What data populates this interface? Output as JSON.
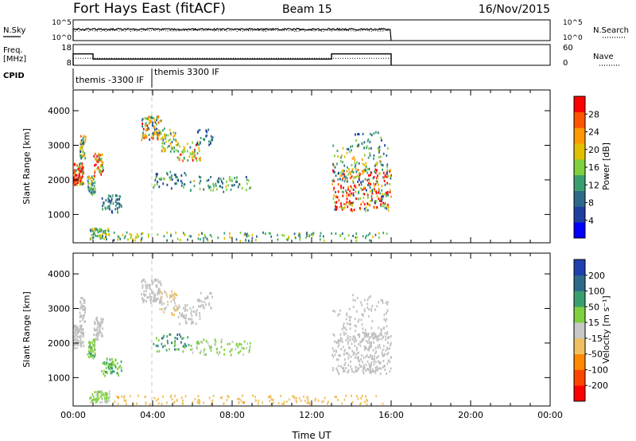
{
  "header": {
    "station": "Fort Hays East (fitACF)",
    "beam": "Beam 15",
    "date": "16/Nov/2015"
  },
  "colors": {
    "power": [
      "#0000ff",
      "#1f3f9f",
      "#2d6a8a",
      "#3a9f6f",
      "#7fcf3f",
      "#e0c000",
      "#ff9900",
      "#ff5500",
      "#ff0000"
    ],
    "velocity": [
      "#ff0000",
      "#ff4400",
      "#ff8800",
      "#f0c060",
      "#c8c8c8",
      "#7fcf3f",
      "#3a9f6f",
      "#2d6a8a",
      "#2040b0"
    ],
    "ground_scatter": "#c0c0c0"
  },
  "chart_data": [
    {
      "type": "line",
      "panel": "noise",
      "left_label": "N.Sky",
      "right_label": "N.Search",
      "left_ticks": [
        "10^5",
        "10^0"
      ],
      "right_ticks": [
        "10^5",
        "10^0"
      ],
      "x_range_hours": [
        0,
        24
      ],
      "series": [
        {
          "name": "N.Sky",
          "style": "solid",
          "x": [
            0,
            16
          ],
          "y": [
            0.55,
            0.55
          ]
        },
        {
          "name": "N.Search",
          "style": "dotted",
          "x": [
            0,
            16
          ],
          "y": [
            0.48,
            0.48
          ]
        }
      ]
    },
    {
      "type": "line",
      "panel": "frequency",
      "left_label_line1": "Freq.",
      "left_label_line2": "[MHz]",
      "right_label": "Nave",
      "left_ticks": [
        "18",
        "8"
      ],
      "right_ticks": [
        "60",
        "0"
      ],
      "x_range_hours": [
        0,
        24
      ],
      "series": [
        {
          "name": "Freq",
          "style": "solid",
          "x": [
            0,
            0,
            1,
            1,
            13,
            13,
            16,
            16
          ],
          "y": [
            8,
            13.5,
            13.5,
            11,
            11,
            13.5,
            13.5,
            8
          ]
        },
        {
          "name": "Nave",
          "style": "dotted",
          "x": [
            0,
            16
          ],
          "y": [
            20,
            20
          ]
        }
      ]
    },
    {
      "type": "table",
      "panel": "cpid",
      "label": "CPID",
      "entries": [
        {
          "time_hours": 0,
          "text": "themis -3300 IF"
        },
        {
          "time_hours": 3.9,
          "text": "themis 3300 IF"
        }
      ]
    },
    {
      "type": "heatmap",
      "panel": "power",
      "ylabel": "Slant Range [km]",
      "ylim": [
        180,
        4600
      ],
      "yticks": [
        1000,
        2000,
        3000,
        4000
      ],
      "x_range_hours": [
        0,
        24
      ],
      "colorbar_label": "Power [dB]",
      "colorbar_ticks": [
        "28",
        "24",
        "20",
        "16",
        "12",
        "8",
        "4"
      ],
      "colorbar_range": [
        0,
        32
      ],
      "patches": [
        {
          "t": [
            0.0,
            0.5
          ],
          "r": [
            1850,
            2500
          ],
          "v": [
            26,
            16
          ],
          "n": 90
        },
        {
          "t": [
            0.3,
            0.6
          ],
          "r": [
            2600,
            3300
          ],
          "v": [
            16,
            10
          ],
          "n": 40
        },
        {
          "t": [
            0.7,
            1.1
          ],
          "r": [
            1550,
            2100
          ],
          "v": [
            14,
            8
          ],
          "n": 45
        },
        {
          "t": [
            1.0,
            1.5
          ],
          "r": [
            2100,
            2750
          ],
          "v": [
            22,
            12
          ],
          "n": 50
        },
        {
          "t": [
            1.4,
            2.4
          ],
          "r": [
            1050,
            1550
          ],
          "v": [
            10,
            6
          ],
          "n": 55
        },
        {
          "t": [
            0.8,
            1.8
          ],
          "r": [
            280,
            600
          ],
          "v": [
            14,
            6
          ],
          "n": 55
        },
        {
          "t": [
            3.4,
            4.4
          ],
          "r": [
            3150,
            3850
          ],
          "v": [
            18,
            12
          ],
          "n": 90
        },
        {
          "t": [
            4.3,
            5.2
          ],
          "r": [
            2800,
            3500
          ],
          "v": [
            16,
            8
          ],
          "n": 50
        },
        {
          "t": [
            5.2,
            6.4
          ],
          "r": [
            2550,
            3100
          ],
          "v": [
            20,
            10
          ],
          "n": 50
        },
        {
          "t": [
            6.2,
            7.0
          ],
          "r": [
            3000,
            3450
          ],
          "v": [
            10,
            6
          ],
          "n": 25
        },
        {
          "t": [
            4.0,
            5.8
          ],
          "r": [
            1750,
            2250
          ],
          "v": [
            10,
            6
          ],
          "n": 45
        },
        {
          "t": [
            5.8,
            8.9
          ],
          "r": [
            1650,
            2100
          ],
          "v": [
            12,
            6
          ],
          "n": 70
        },
        {
          "t": [
            2.0,
            15.8
          ],
          "r": [
            230,
            480
          ],
          "v": [
            14,
            6
          ],
          "n": 140
        },
        {
          "t": [
            13.0,
            16.0
          ],
          "r": [
            1100,
            2300
          ],
          "v": [
            24,
            18
          ],
          "n": 260
        },
        {
          "t": [
            13.0,
            15.8
          ],
          "r": [
            2000,
            3000
          ],
          "v": [
            14,
            8
          ],
          "n": 100
        },
        {
          "t": [
            14.0,
            15.8
          ],
          "r": [
            2900,
            3400
          ],
          "v": [
            10,
            6
          ],
          "n": 25
        }
      ]
    },
    {
      "type": "heatmap",
      "panel": "velocity",
      "ylabel": "Slant Range [km]",
      "ylim": [
        180,
        4600
      ],
      "yticks": [
        1000,
        2000,
        3000,
        4000
      ],
      "x_range_hours": [
        0,
        24
      ],
      "xticks": [
        "00:00",
        "04:00",
        "08:00",
        "12:00",
        "16:00",
        "20:00",
        "00:00"
      ],
      "xlabel": "Time UT",
      "colorbar_label": "Velocity [m s⁻¹]",
      "colorbar_ticks": [
        "200",
        "100",
        "50",
        "15",
        "-15",
        "-50",
        "-100",
        "-200"
      ],
      "colorbar_range": [
        -250,
        250
      ],
      "patches": [
        {
          "t": [
            0.0,
            0.5
          ],
          "r": [
            1850,
            2500
          ],
          "v": [
            0,
            0
          ],
          "gs": true,
          "n": 90
        },
        {
          "t": [
            0.3,
            0.6
          ],
          "r": [
            2600,
            3300
          ],
          "v": [
            0,
            0
          ],
          "gs": true,
          "n": 40
        },
        {
          "t": [
            0.7,
            1.1
          ],
          "r": [
            1550,
            2100
          ],
          "v": [
            60,
            40
          ],
          "n": 45
        },
        {
          "t": [
            1.0,
            1.5
          ],
          "r": [
            2100,
            2750
          ],
          "v": [
            0,
            0
          ],
          "gs": true,
          "n": 50
        },
        {
          "t": [
            1.4,
            2.4
          ],
          "r": [
            1050,
            1550
          ],
          "v": [
            80,
            40
          ],
          "n": 55
        },
        {
          "t": [
            0.8,
            1.8
          ],
          "r": [
            280,
            600
          ],
          "v": [
            35,
            20
          ],
          "n": 55
        },
        {
          "t": [
            3.4,
            4.4
          ],
          "r": [
            3150,
            3850
          ],
          "v": [
            0,
            0
          ],
          "gs": true,
          "n": 90
        },
        {
          "t": [
            4.3,
            5.2
          ],
          "r": [
            2800,
            3500
          ],
          "v": [
            -30,
            20
          ],
          "n": 50
        },
        {
          "t": [
            5.2,
            6.4
          ],
          "r": [
            2550,
            3100
          ],
          "v": [
            0,
            0
          ],
          "gs": true,
          "n": 50
        },
        {
          "t": [
            6.2,
            7.0
          ],
          "r": [
            3000,
            3450
          ],
          "v": [
            0,
            0
          ],
          "gs": true,
          "n": 25
        },
        {
          "t": [
            4.0,
            5.8
          ],
          "r": [
            1750,
            2250
          ],
          "v": [
            120,
            60
          ],
          "n": 45
        },
        {
          "t": [
            5.8,
            8.9
          ],
          "r": [
            1650,
            2100
          ],
          "v": [
            35,
            15
          ],
          "n": 70
        },
        {
          "t": [
            2.0,
            15.8
          ],
          "r": [
            230,
            480
          ],
          "v": [
            -60,
            25
          ],
          "n": 140
        },
        {
          "t": [
            13.0,
            16.0
          ],
          "r": [
            1100,
            2300
          ],
          "v": [
            0,
            0
          ],
          "gs": true,
          "n": 260
        },
        {
          "t": [
            13.0,
            15.8
          ],
          "r": [
            2000,
            3000
          ],
          "v": [
            0,
            0
          ],
          "gs": true,
          "n": 100
        },
        {
          "t": [
            14.0,
            15.8
          ],
          "r": [
            2900,
            3400
          ],
          "v": [
            0,
            0
          ],
          "gs": true,
          "n": 25
        }
      ]
    }
  ]
}
